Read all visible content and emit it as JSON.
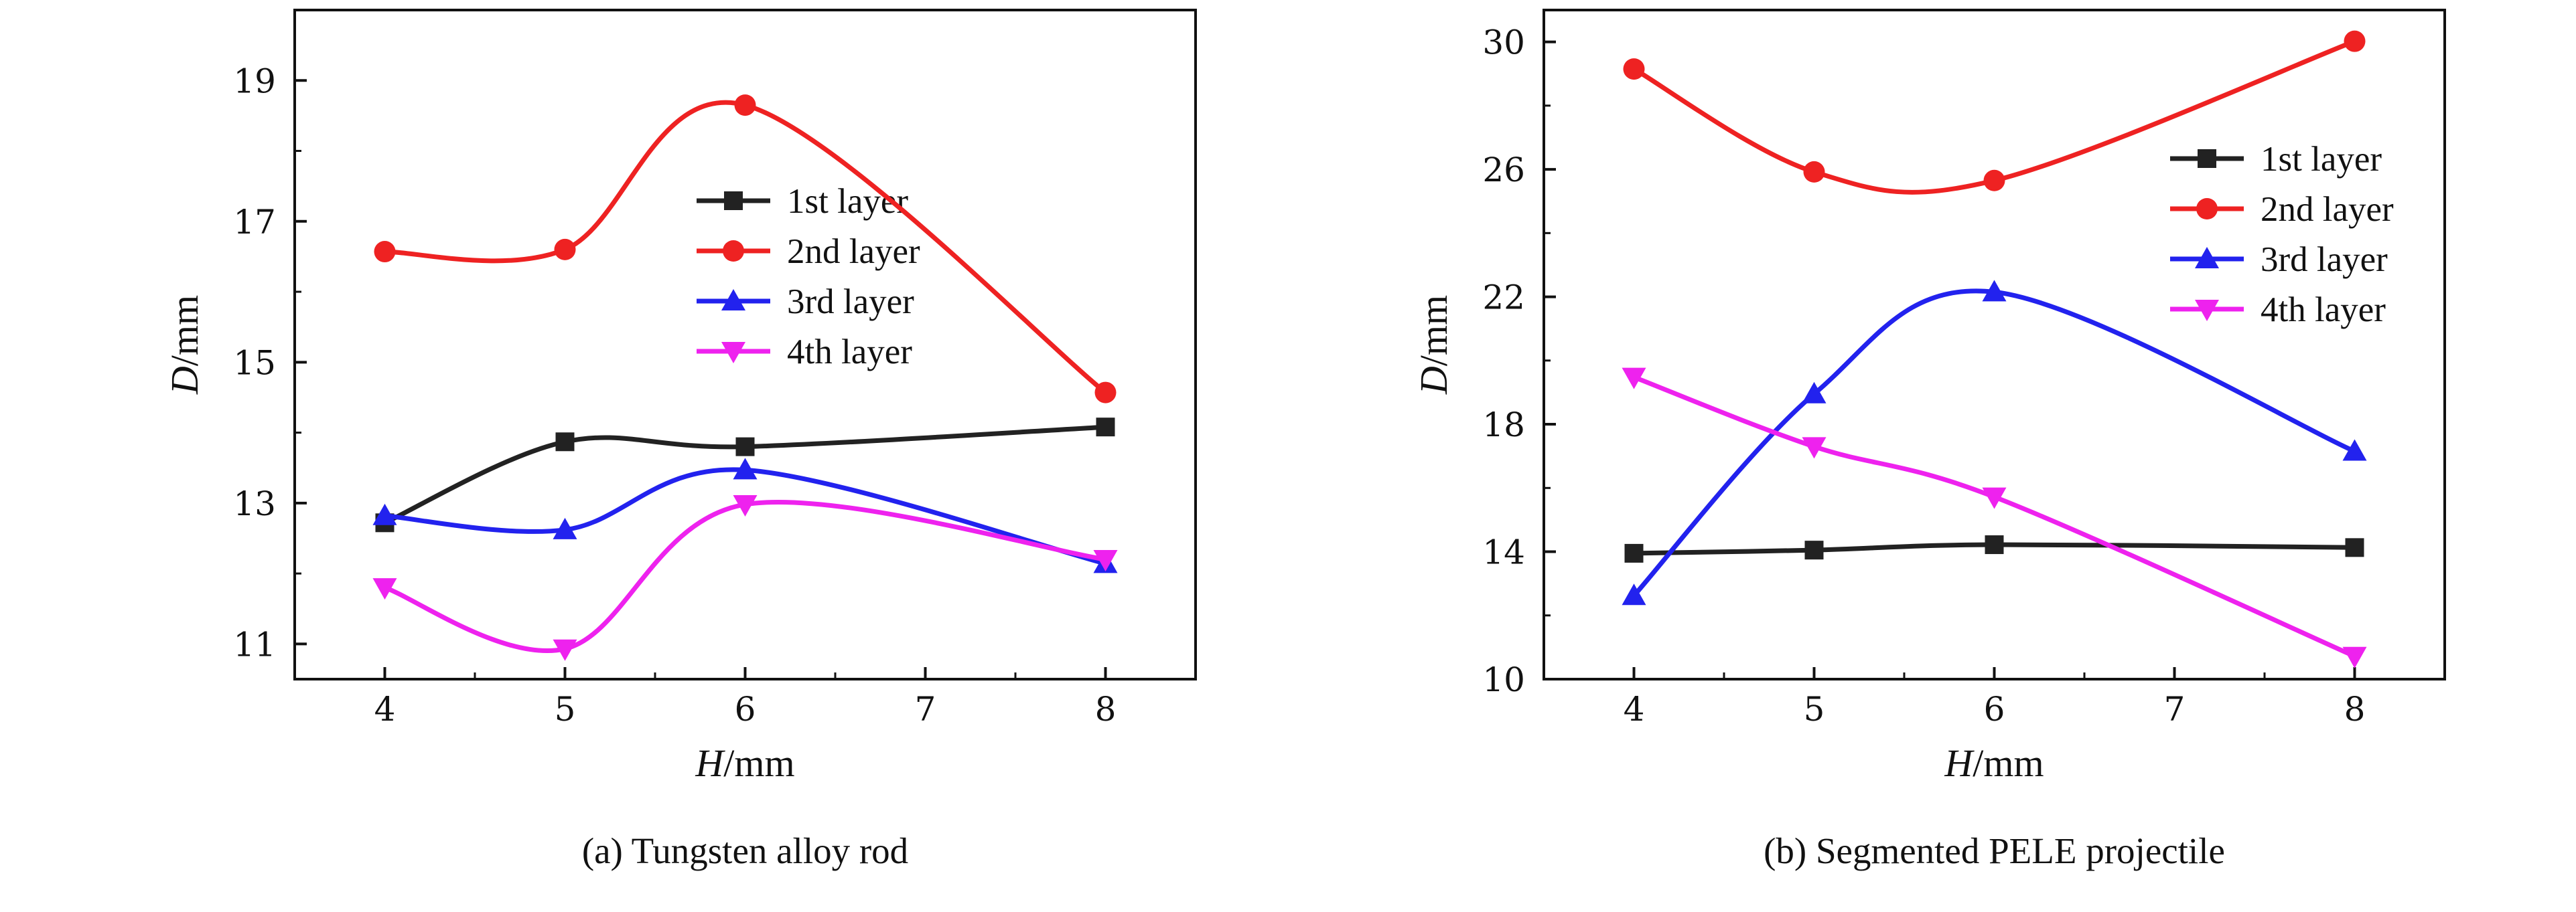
{
  "chart_data": [
    {
      "type": "line",
      "caption": "(a) Tungsten alloy rod",
      "xlabel": {
        "var": "H",
        "unit": "/mm"
      },
      "ylabel": {
        "var": "D",
        "unit": "/mm"
      },
      "xlim": [
        3.5,
        8.5
      ],
      "ylim": [
        10.5,
        20.0
      ],
      "xticks": [
        4,
        5,
        6,
        7,
        8
      ],
      "yticks": [
        11,
        13,
        15,
        17,
        19
      ],
      "legend_position": "center-right",
      "series": [
        {
          "name": "1st layer",
          "color": "#222222",
          "marker": "square",
          "x": [
            4,
            5,
            6,
            8
          ],
          "values": [
            12.72,
            13.87,
            13.8,
            14.08
          ]
        },
        {
          "name": "2nd layer",
          "color": "#ee2222",
          "marker": "circle",
          "x": [
            4,
            5,
            6,
            8
          ],
          "values": [
            16.57,
            16.6,
            18.65,
            14.57
          ]
        },
        {
          "name": "3rd layer",
          "color": "#2222ee",
          "marker": "triangle-up",
          "x": [
            4,
            5,
            6,
            8
          ],
          "values": [
            12.82,
            12.62,
            13.47,
            12.14
          ]
        },
        {
          "name": "4th layer",
          "color": "#ee22ee",
          "marker": "triangle-down",
          "x": [
            4,
            5,
            6,
            8
          ],
          "values": [
            11.8,
            10.93,
            12.98,
            12.2
          ]
        }
      ]
    },
    {
      "type": "line",
      "caption": "(b) Segmented PELE projectile",
      "xlabel": {
        "var": "H",
        "unit": "/mm"
      },
      "ylabel": {
        "var": "D",
        "unit": "/mm"
      },
      "xlim": [
        3.5,
        8.5
      ],
      "ylim": [
        10.0,
        31.0
      ],
      "xticks": [
        4,
        5,
        6,
        7,
        8
      ],
      "yticks": [
        10,
        14,
        18,
        22,
        26,
        30
      ],
      "legend_position": "upper-right",
      "series": [
        {
          "name": "1st layer",
          "color": "#222222",
          "marker": "square",
          "x": [
            4,
            5,
            6,
            8
          ],
          "values": [
            13.95,
            14.05,
            14.22,
            14.13
          ]
        },
        {
          "name": "2nd layer",
          "color": "#ee2222",
          "marker": "circle",
          "x": [
            4,
            5,
            6,
            8
          ],
          "values": [
            29.15,
            25.92,
            25.65,
            30.02
          ]
        },
        {
          "name": "3rd layer",
          "color": "#2222ee",
          "marker": "triangle-up",
          "x": [
            4,
            5,
            6,
            8
          ],
          "values": [
            12.62,
            18.95,
            22.15,
            17.15
          ]
        },
        {
          "name": "4th layer",
          "color": "#ee22ee",
          "marker": "triangle-down",
          "x": [
            4,
            5,
            6,
            8
          ],
          "values": [
            19.48,
            17.3,
            15.72,
            10.72
          ]
        }
      ]
    }
  ]
}
